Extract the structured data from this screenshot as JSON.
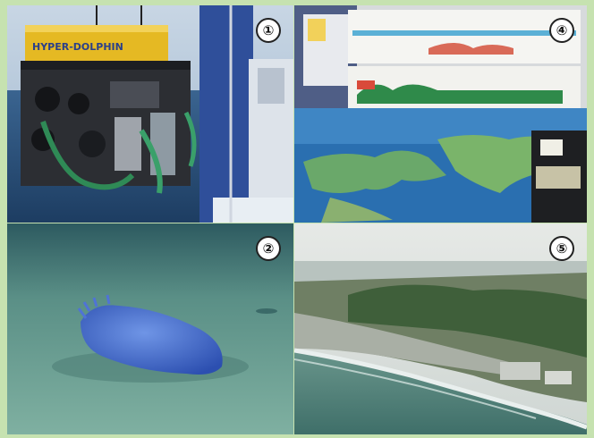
{
  "panels": [
    {
      "id": "rov-photo",
      "badge": "①",
      "hull_text": "HYPER-DOLPHIN"
    },
    {
      "id": "exhibit-photo",
      "badge": "④"
    },
    {
      "id": "sea-cucumber-photo",
      "badge": "②"
    },
    {
      "id": "coast-aerial-photo",
      "badge": "⑤"
    }
  ],
  "colors": {
    "frame": "#c6e2b0",
    "sea": "#2a4f7a",
    "seafloor": "#6a9c94",
    "creature": "#3f66c9"
  }
}
